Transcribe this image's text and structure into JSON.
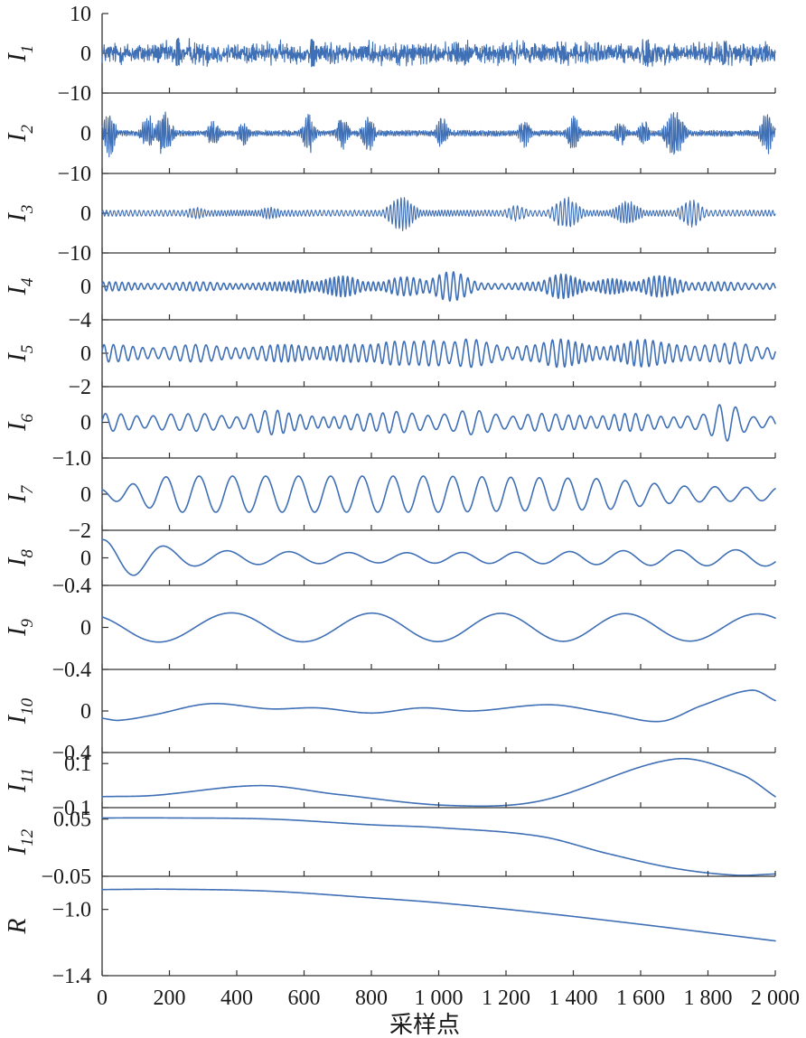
{
  "colors": {
    "line": "#3f6fb5",
    "axis": "#333333",
    "text": "#1a1a1a"
  },
  "chart_data": {
    "type": "line",
    "title": "",
    "xlabel": "采样点",
    "xlim": [
      0,
      2000
    ],
    "x_ticks": [
      0,
      200,
      400,
      600,
      800,
      1000,
      1200,
      1400,
      1600,
      1800,
      2000
    ],
    "x_tick_labels": [
      "0",
      "200",
      "400",
      "600",
      "800",
      "1 000",
      "1 200",
      "1 400",
      "1 600",
      "1 800",
      "2 000"
    ],
    "grid": false,
    "legend": "none",
    "panels": [
      {
        "name": "I",
        "sub": "1",
        "ylim": [
          -10,
          10
        ],
        "y_ticks": [
          10,
          0,
          -10
        ],
        "y_tick_labels": [
          "10",
          "0",
          "−10"
        ],
        "shape": "noise",
        "amplitude": 2.6,
        "envelope": [
          [
            0,
            1.0
          ],
          [
            2000,
            1.0
          ]
        ],
        "features": [
          [
            225,
            4.0
          ],
          [
            625,
            3.5
          ],
          [
            1620,
            3.4
          ],
          [
            1850,
            3.2
          ]
        ]
      },
      {
        "name": "I",
        "sub": "2",
        "ylim": [
          -10,
          10
        ],
        "y_ticks": [
          0,
          -10
        ],
        "y_tick_labels": [
          "0",
          "−10"
        ],
        "shape": "bursts",
        "amplitude": 6.5,
        "baseline": 0.12,
        "bursts": [
          [
            20,
            1.0,
            20
          ],
          [
            135,
            0.8,
            20
          ],
          [
            185,
            0.95,
            25
          ],
          [
            330,
            0.55,
            20
          ],
          [
            420,
            0.5,
            20
          ],
          [
            615,
            0.9,
            20
          ],
          [
            715,
            0.7,
            20
          ],
          [
            790,
            0.85,
            20
          ],
          [
            1010,
            0.7,
            20
          ],
          [
            1255,
            0.6,
            20
          ],
          [
            1400,
            0.8,
            20
          ],
          [
            1540,
            0.55,
            20
          ],
          [
            1610,
            0.5,
            20
          ],
          [
            1700,
            1.0,
            30
          ],
          [
            1975,
            0.9,
            20
          ]
        ]
      },
      {
        "name": "I",
        "sub": "3",
        "ylim": [
          -10,
          10
        ],
        "y_ticks": [
          0,
          -10
        ],
        "y_tick_labels": [
          "0",
          "−10"
        ],
        "shape": "chirp",
        "amplitude": 4.5,
        "periods": [
          9,
          13
        ],
        "baseline": 0.18,
        "bursts": [
          [
            280,
            0.35,
            40
          ],
          [
            500,
            0.35,
            40
          ],
          [
            890,
            1.0,
            45
          ],
          [
            1230,
            0.45,
            40
          ],
          [
            1380,
            0.95,
            45
          ],
          [
            1560,
            0.7,
            45
          ],
          [
            1750,
            0.8,
            40
          ]
        ]
      },
      {
        "name": "I",
        "sub": "4",
        "ylim": [
          -4,
          4
        ],
        "y_ticks": [
          0,
          -4
        ],
        "y_tick_labels": [
          "0",
          "−4"
        ],
        "shape": "modulated",
        "amplitude": 1.9,
        "period": 19,
        "baseline": 0.28,
        "bursts": [
          [
            150,
            0.3,
            60
          ],
          [
            600,
            0.5,
            60
          ],
          [
            700,
            0.95,
            70
          ],
          [
            910,
            0.95,
            70
          ],
          [
            1030,
            0.95,
            80
          ],
          [
            1380,
            0.95,
            70
          ],
          [
            1500,
            0.6,
            70
          ],
          [
            1670,
            1.0,
            70
          ]
        ]
      },
      {
        "name": "I",
        "sub": "5",
        "ylim": [
          -2,
          2
        ],
        "y_ticks": [
          0,
          -2
        ],
        "y_tick_labels": [
          "0",
          "−2"
        ],
        "shape": "modulated",
        "amplitude": 1.3,
        "period": 29,
        "baseline": 0.4,
        "bursts": [
          [
            700,
            0.55,
            120
          ],
          [
            930,
            0.9,
            130
          ],
          [
            1120,
            0.75,
            120
          ],
          [
            1390,
            0.8,
            110
          ],
          [
            1650,
            0.75,
            140
          ],
          [
            1900,
            0.6,
            100
          ]
        ]
      },
      {
        "name": "I",
        "sub": "6",
        "ylim": [
          -1.0,
          1.0
        ],
        "y_ticks": [
          0,
          -1.0
        ],
        "y_tick_labels": [
          "0",
          "−1.0"
        ],
        "shape": "modulated",
        "amplitude": 0.55,
        "period": 47,
        "baseline": 0.45,
        "bursts": [
          [
            180,
            0.6,
            100
          ],
          [
            480,
            0.7,
            120
          ],
          [
            900,
            0.8,
            100
          ],
          [
            1130,
            0.75,
            120
          ],
          [
            1420,
            0.55,
            100
          ],
          [
            1860,
            1.0,
            80
          ]
        ]
      },
      {
        "name": "I",
        "sub": "7",
        "ylim": [
          -2,
          2
        ],
        "y_ticks": [
          0,
          -2
        ],
        "y_tick_labels": [
          "0",
          "−2"
        ],
        "shape": "sine",
        "amplitude": 1.0,
        "period": 92,
        "phase": 1.9,
        "envelope": [
          [
            0,
            0.28
          ],
          [
            60,
            0.45
          ],
          [
            200,
            1.0
          ],
          [
            1000,
            1.0
          ],
          [
            1500,
            0.85
          ],
          [
            1720,
            0.45
          ],
          [
            2000,
            0.35
          ]
        ]
      },
      {
        "name": "I",
        "sub": "8",
        "ylim": [
          -0.4,
          0.4
        ],
        "y_ticks": [
          0,
          -0.4
        ],
        "y_tick_labels": [
          "0",
          "−0.4"
        ],
        "shape": "sine",
        "amplitude": 0.24,
        "period": 172,
        "phase": 1.4,
        "envelope": [
          [
            0,
            1.1
          ],
          [
            100,
            1.05
          ],
          [
            200,
            0.65
          ],
          [
            300,
            0.45
          ],
          [
            800,
            0.3
          ],
          [
            1300,
            0.35
          ],
          [
            1600,
            0.45
          ],
          [
            2000,
            0.5
          ]
        ]
      },
      {
        "name": "I",
        "sub": "9",
        "ylim": [
          -0.4,
          0.4
        ],
        "y_ticks": [
          0,
          -0.4
        ],
        "y_tick_labels": [
          "0",
          "−0.4"
        ],
        "shape": "sine",
        "amplitude": 0.14,
        "period": 400,
        "phase": 2.2,
        "envelope": [
          [
            0,
            0.9
          ],
          [
            100,
            1.0
          ],
          [
            2000,
            0.92
          ]
        ]
      },
      {
        "name": "I",
        "sub": "10",
        "ylim": [
          -0.4,
          0.4
        ],
        "y_ticks": [
          0,
          -0.4
        ],
        "y_tick_labels": [
          "0",
          "−0.4"
        ],
        "shape": "points",
        "points": [
          [
            0,
            -0.07
          ],
          [
            50,
            -0.09
          ],
          [
            150,
            -0.04
          ],
          [
            320,
            0.07
          ],
          [
            500,
            0.02
          ],
          [
            640,
            0.03
          ],
          [
            800,
            -0.02
          ],
          [
            950,
            0.03
          ],
          [
            1100,
            0.0
          ],
          [
            1330,
            0.06
          ],
          [
            1500,
            -0.02
          ],
          [
            1660,
            -0.1
          ],
          [
            1780,
            0.05
          ],
          [
            1930,
            0.2
          ],
          [
            2000,
            0.1
          ]
        ]
      },
      {
        "name": "I",
        "sub": "11",
        "ylim": [
          -0.1,
          0.15
        ],
        "y_ticks": [
          0.1,
          -0.1
        ],
        "y_tick_labels": [
          "0.1",
          "−0.1"
        ],
        "shape": "points",
        "points": [
          [
            0,
            -0.05
          ],
          [
            150,
            -0.045
          ],
          [
            470,
            0.0
          ],
          [
            700,
            -0.04
          ],
          [
            1030,
            -0.09
          ],
          [
            1300,
            -0.07
          ],
          [
            1700,
            0.12
          ],
          [
            1900,
            0.05
          ],
          [
            2000,
            -0.05
          ]
        ]
      },
      {
        "name": "I",
        "sub": "12",
        "ylim": [
          -0.05,
          0.07
        ],
        "y_ticks": [
          0.05,
          -0.05
        ],
        "y_tick_labels": [
          "0.05",
          "−0.05"
        ],
        "shape": "points",
        "points": [
          [
            0,
            0.052
          ],
          [
            200,
            0.052
          ],
          [
            500,
            0.05
          ],
          [
            800,
            0.04
          ],
          [
            1000,
            0.035
          ],
          [
            1300,
            0.02
          ],
          [
            1500,
            -0.01
          ],
          [
            1700,
            -0.036
          ],
          [
            1880,
            -0.048
          ],
          [
            2000,
            -0.046
          ]
        ]
      },
      {
        "name": "R",
        "sub": "",
        "ylim": [
          -1.4,
          -0.8
        ],
        "y_ticks": [
          -1.0,
          -1.4
        ],
        "y_tick_labels": [
          "−1.0",
          "−1.4"
        ],
        "shape": "points",
        "points": [
          [
            0,
            -0.88
          ],
          [
            200,
            -0.878
          ],
          [
            500,
            -0.89
          ],
          [
            800,
            -0.93
          ],
          [
            1000,
            -0.96
          ],
          [
            1300,
            -1.02
          ],
          [
            1600,
            -1.09
          ],
          [
            1800,
            -1.14
          ],
          [
            2000,
            -1.19
          ]
        ]
      }
    ]
  }
}
